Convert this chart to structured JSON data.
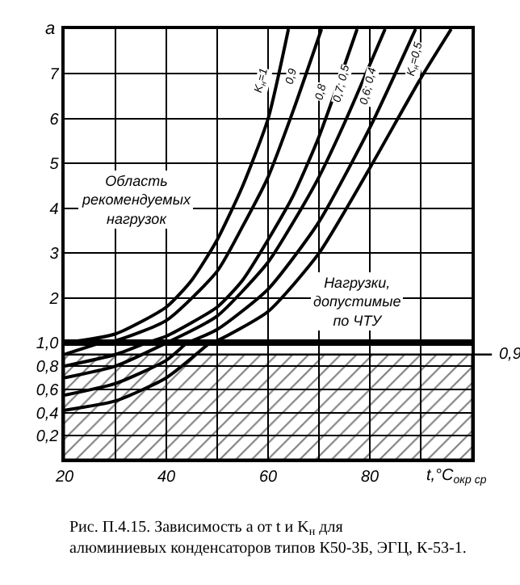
{
  "chart_data": [
    {
      "type": "line",
      "ylabel": "a",
      "xlim": [
        20,
        100
      ],
      "xticks": [
        20,
        {
          "value": 30,
          "label": null
        },
        40,
        {
          "value": 50,
          "label": null
        },
        60,
        {
          "value": 70,
          "label": null
        },
        80,
        {
          "value": 90,
          "label": null
        },
        {
          "value": 100,
          "label": null
        }
      ],
      "ylim": [
        1,
        8
      ],
      "yticks": [
        2,
        3,
        4,
        5,
        6,
        7
      ],
      "tick_labels": "y",
      "grid": true,
      "legend": false,
      "marker": "none",
      "line_style": "solid",
      "series": [
        {
          "name": "K$_{н}$=1",
          "color": "#000000",
          "x": [
            20,
            30,
            40,
            45,
            50,
            55,
            60,
            64
          ],
          "values": [
            1.0,
            1.2,
            1.8,
            2.4,
            3.3,
            4.5,
            6.0,
            8.0
          ]
        },
        {
          "name": "0,9",
          "color": "#000000",
          "x": [
            27,
            30,
            40,
            50,
            55,
            60,
            65,
            70.5
          ],
          "values": [
            1.0,
            1.05,
            1.5,
            2.6,
            3.6,
            4.7,
            6.2,
            8.0
          ]
        },
        {
          "name": "0,8",
          "color": "#000000",
          "x": [
            36,
            40,
            50,
            55,
            60,
            65,
            70,
            77.5
          ],
          "values": [
            1.0,
            1.15,
            1.8,
            2.4,
            3.3,
            4.3,
            5.6,
            8.0
          ]
        },
        {
          "name": "0,7; 0,5",
          "color": "#000000",
          "x": [
            40,
            50,
            60,
            65,
            70,
            75,
            83
          ],
          "values": [
            1.0,
            1.6,
            2.8,
            3.7,
            4.7,
            5.9,
            8.0
          ]
        },
        {
          "name": "0,6; 0,4",
          "color": "#000000",
          "x": [
            44,
            50,
            60,
            70,
            80,
            89
          ],
          "values": [
            1.0,
            1.3,
            2.2,
            3.7,
            5.8,
            8.0
          ]
        },
        {
          "name": "K$_{н}$=0,5",
          "color": "#000000",
          "x": [
            48.5,
            50,
            60,
            70,
            80,
            90,
            96
          ],
          "values": [
            1.0,
            1.05,
            1.7,
            3.0,
            4.9,
            6.9,
            8.0
          ]
        }
      ],
      "annotations": [
        "Область рекомендуемых нагрузок",
        "Нагрузки, допустимые по ЧТУ"
      ]
    },
    {
      "type": "line",
      "xlabel": "t,°C$_{окр ср}$",
      "xlim": [
        20,
        100
      ],
      "xticks": [
        20,
        {
          "value": 30,
          "label": null
        },
        40,
        {
          "value": 50,
          "label": null
        },
        60,
        {
          "value": 70,
          "label": null
        },
        80,
        {
          "value": 90,
          "label": null
        },
        {
          "value": 100,
          "label": null
        }
      ],
      "ylim": [
        0,
        1
      ],
      "yticks": [
        {
          "value": 0.2,
          "label": "0,2"
        },
        {
          "value": 0.4,
          "label": "0,4"
        },
        {
          "value": 0.6,
          "label": "0,6"
        },
        {
          "value": 0.8,
          "label": "0,8"
        },
        {
          "value": 1.0,
          "label": "1,0"
        }
      ],
      "grid": true,
      "legend": false,
      "marker": "none",
      "line_style": "solid",
      "series": [
        {
          "color": "#000000",
          "x": [
            20,
            27
          ],
          "values": [
            0.9,
            1.0
          ]
        },
        {
          "color": "#000000",
          "x": [
            20,
            30,
            36
          ],
          "values": [
            0.8,
            0.9,
            1.0
          ]
        },
        {
          "color": "#000000",
          "x": [
            20,
            30,
            40
          ],
          "values": [
            0.7,
            0.8,
            1.0
          ]
        },
        {
          "color": "#000000",
          "x": [
            20,
            30,
            40,
            44
          ],
          "values": [
            0.55,
            0.65,
            0.85,
            1.0
          ]
        },
        {
          "color": "#000000",
          "x": [
            20,
            30,
            40,
            48.5
          ],
          "values": [
            0.42,
            0.5,
            0.7,
            1.0
          ]
        }
      ],
      "ref_lines": [
        {
          "axis": "y",
          "value": 0.9,
          "label": "0,9",
          "color": "#000000"
        }
      ],
      "bands": [
        {
          "axis": "y",
          "from": 0,
          "to": 0.9,
          "color": "#000000"
        }
      ],
      "annotations": [
        "Рис. П.4.15. Зависимость a от t и K$_{н}$ для алюминиевых конденсаторов типов К50-3Б, ЭГЦ, К-53-1."
      ]
    }
  ]
}
